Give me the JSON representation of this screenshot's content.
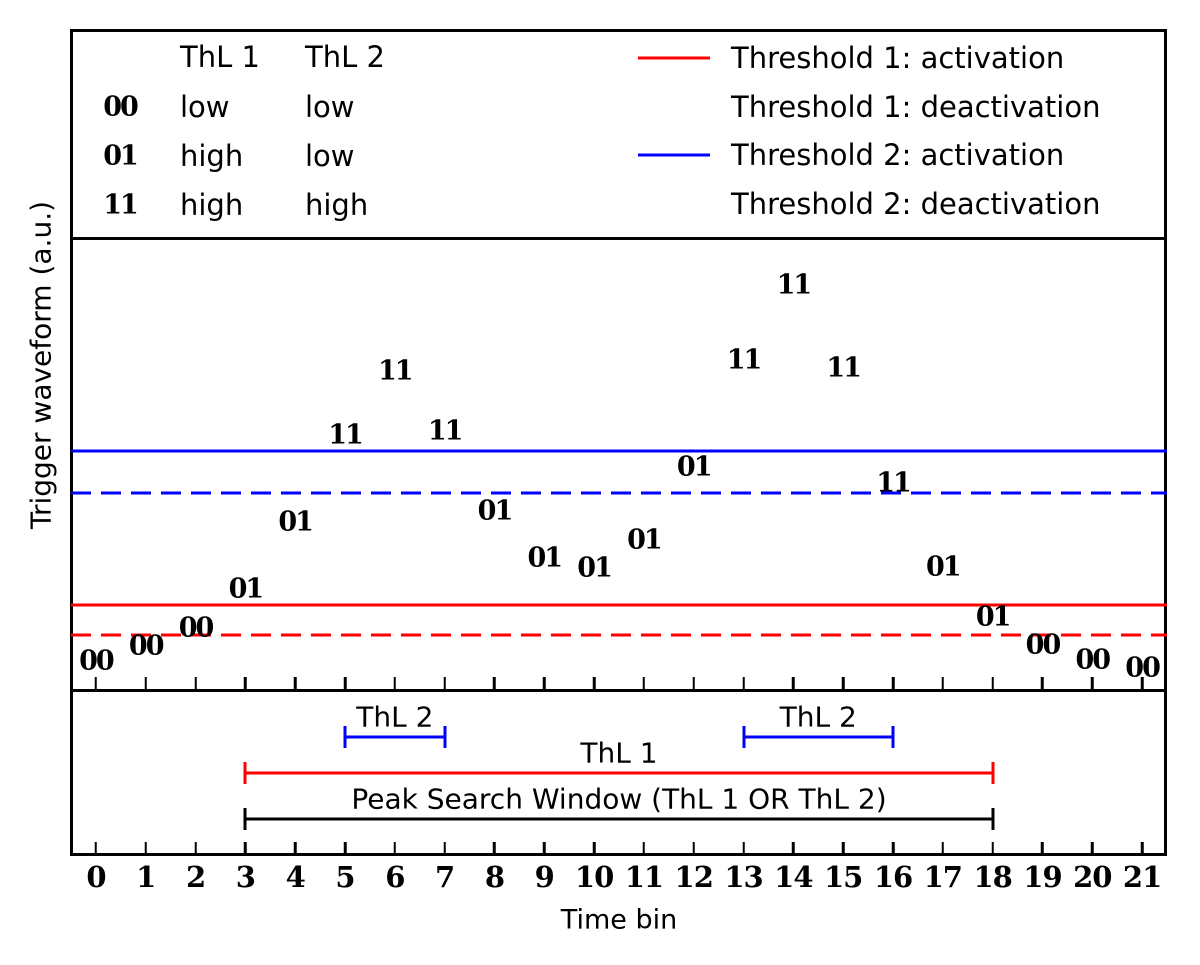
{
  "colors": {
    "red": "#ff0000",
    "blue": "#0000ff",
    "black": "#000000"
  },
  "legend_table": {
    "headers": [
      "ThL 1",
      "ThL 2"
    ],
    "rows": [
      {
        "code": "00",
        "thl1": "low",
        "thl2": "low"
      },
      {
        "code": "01",
        "thl1": "high",
        "thl2": "low"
      },
      {
        "code": "11",
        "thl1": "high",
        "thl2": "high"
      }
    ]
  },
  "legend_entries": [
    {
      "label": "Threshold 1: activation",
      "color": "#ff0000",
      "style": "solid"
    },
    {
      "label": "Threshold 1: deactivation",
      "color": "#ff0000",
      "style": "dashed"
    },
    {
      "label": "Threshold 2: activation",
      "color": "#0000ff",
      "style": "solid"
    },
    {
      "label": "Threshold 2: deactivation",
      "color": "#0000ff",
      "style": "dashed"
    }
  ],
  "chart_data": {
    "type": "scatter",
    "xlabel": "Time bin",
    "ylabel": "Trigger waveform (a.u.)",
    "xlim": [
      -0.5,
      21.5
    ],
    "ylim": [
      0,
      100
    ],
    "grid": false,
    "x": [
      0,
      1,
      2,
      3,
      4,
      5,
      6,
      7,
      8,
      9,
      10,
      11,
      12,
      13,
      14,
      15,
      16,
      17,
      18,
      19,
      20,
      21
    ],
    "x_ticks": [
      "0",
      "1",
      "2",
      "3",
      "4",
      "5",
      "6",
      "7",
      "8",
      "9",
      "10",
      "11",
      "12",
      "13",
      "14",
      "15",
      "16",
      "17",
      "18",
      "19",
      "20",
      "21"
    ],
    "point_labels": [
      "00",
      "00",
      "00",
      "01",
      "01",
      "11",
      "11",
      "11",
      "01",
      "01",
      "01",
      "01",
      "01",
      "11",
      "11",
      "11",
      "11",
      "01",
      "01",
      "00",
      "00",
      "00"
    ],
    "values": [
      6.4,
      9.7,
      13.7,
      22.3,
      37.2,
      56.4,
      70.6,
      57.3,
      39.6,
      29.2,
      27.0,
      33.2,
      49.3,
      73.0,
      89.6,
      71.2,
      45.8,
      27.2,
      16.2,
      10.0,
      6.6,
      4.9
    ],
    "thresholds": [
      {
        "name": "Threshold 2: activation",
        "value": 52.9,
        "color": "#0000ff",
        "style": "solid"
      },
      {
        "name": "Threshold 2: deactivation",
        "value": 43.6,
        "color": "#0000ff",
        "style": "dashed"
      },
      {
        "name": "Threshold 1: activation",
        "value": 18.8,
        "color": "#ff0000",
        "style": "solid"
      },
      {
        "name": "Threshold 1: deactivation",
        "value": 12.2,
        "color": "#ff0000",
        "style": "dashed"
      }
    ],
    "intervals": [
      {
        "label": "ThL 2",
        "start_bin": 5,
        "end_bin": 7,
        "color": "#0000ff",
        "row": 0
      },
      {
        "label": "ThL 2",
        "start_bin": 13,
        "end_bin": 16,
        "color": "#0000ff",
        "row": 0
      },
      {
        "label": "ThL 1",
        "start_bin": 3,
        "end_bin": 18,
        "color": "#ff0000",
        "row": 1
      },
      {
        "label": "Peak Search Window (ThL 1 OR ThL 2)",
        "start_bin": 3,
        "end_bin": 18,
        "color": "#000000",
        "row": 2
      }
    ]
  }
}
